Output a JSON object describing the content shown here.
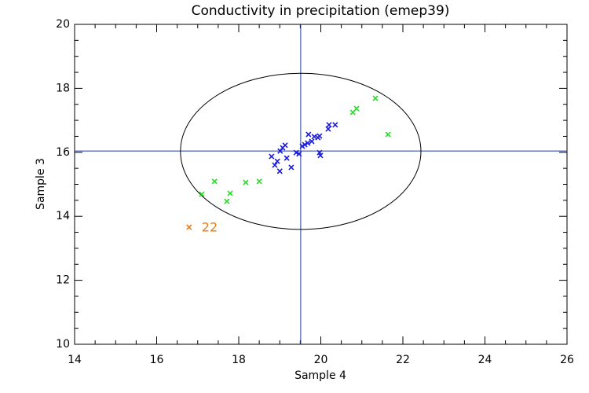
{
  "chart_data": {
    "type": "scatter",
    "title": "Conductivity in precipitation (emep39)",
    "x_label": "Sample 4",
    "y_label": "Sample 3",
    "xlim": [
      14,
      26
    ],
    "ylim": [
      10,
      20
    ],
    "xticks": [
      14,
      16,
      18,
      20,
      22,
      24,
      26
    ],
    "yticks": [
      10,
      12,
      14,
      16,
      18,
      20
    ],
    "vline": {
      "value": 19.51,
      "color": "#1f3fa0"
    },
    "hline": {
      "value": 16.04,
      "color": "#1f3fa0"
    },
    "ellipse": {
      "cx": 19.51,
      "cy": 16.03,
      "rx": 2.93,
      "ry": 2.44,
      "color": "#000000"
    },
    "series": [
      {
        "color": "#1a1adc",
        "x": [
          18.8,
          18.88,
          18.94,
          19.0,
          19.01,
          19.07,
          19.13,
          19.17,
          19.28,
          19.4,
          19.47,
          19.55,
          19.61,
          19.68,
          19.7,
          19.78,
          19.84,
          19.93,
          19.97,
          19.97,
          19.99,
          20.18,
          20.2,
          20.35
        ],
        "values": [
          15.87,
          15.6,
          15.72,
          15.41,
          16.04,
          16.14,
          16.22,
          15.82,
          15.53,
          15.99,
          15.95,
          16.19,
          16.24,
          16.29,
          16.56,
          16.34,
          16.49,
          16.46,
          16.51,
          15.99,
          15.9,
          16.73,
          16.86,
          16.86
        ]
      },
      {
        "color": "#22dd22",
        "x": [
          17.1,
          17.41,
          17.71,
          17.79,
          18.17,
          18.5,
          20.78,
          20.87,
          21.33,
          21.64
        ],
        "values": [
          14.69,
          15.09,
          14.47,
          14.72,
          15.06,
          15.09,
          17.25,
          17.37,
          17.69,
          16.56
        ]
      },
      {
        "color": "#e87a10",
        "x": [
          16.79
        ],
        "values": [
          13.66
        ],
        "point_labels": [
          "22"
        ]
      }
    ]
  }
}
